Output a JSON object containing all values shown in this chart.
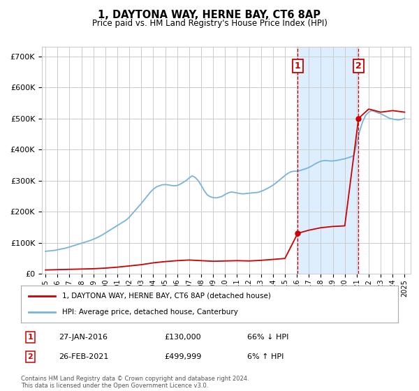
{
  "title": "1, DAYTONA WAY, HERNE BAY, CT6 8AP",
  "subtitle": "Price paid vs. HM Land Registry's House Price Index (HPI)",
  "legend_line1": "1, DAYTONA WAY, HERNE BAY, CT6 8AP (detached house)",
  "legend_line2": "HPI: Average price, detached house, Canterbury",
  "footer": "Contains HM Land Registry data © Crown copyright and database right 2024.\nThis data is licensed under the Open Government Licence v3.0.",
  "sale1_label": "1",
  "sale1_date": "27-JAN-2016",
  "sale1_price": "£130,000",
  "sale1_hpi": "66% ↓ HPI",
  "sale1_year": 2016.07,
  "sale1_value": 130000,
  "sale2_label": "2",
  "sale2_date": "26-FEB-2021",
  "sale2_price": "£499,999",
  "sale2_hpi": "6% ↑ HPI",
  "sale2_year": 2021.15,
  "sale2_value": 499999,
  "hpi_color": "#7ab3d9",
  "sale_color": "#cc0000",
  "shade_color": "#ddeeff",
  "grid_color": "#cccccc",
  "hpi_years": [
    1995.0,
    1995.25,
    1995.5,
    1995.75,
    1996.0,
    1996.25,
    1996.5,
    1996.75,
    1997.0,
    1997.25,
    1997.5,
    1997.75,
    1998.0,
    1998.25,
    1998.5,
    1998.75,
    1999.0,
    1999.25,
    1999.5,
    1999.75,
    2000.0,
    2000.25,
    2000.5,
    2000.75,
    2001.0,
    2001.25,
    2001.5,
    2001.75,
    2002.0,
    2002.25,
    2002.5,
    2002.75,
    2003.0,
    2003.25,
    2003.5,
    2003.75,
    2004.0,
    2004.25,
    2004.5,
    2004.75,
    2005.0,
    2005.25,
    2005.5,
    2005.75,
    2006.0,
    2006.25,
    2006.5,
    2006.75,
    2007.0,
    2007.25,
    2007.5,
    2007.75,
    2008.0,
    2008.25,
    2008.5,
    2008.75,
    2009.0,
    2009.25,
    2009.5,
    2009.75,
    2010.0,
    2010.25,
    2010.5,
    2010.75,
    2011.0,
    2011.25,
    2011.5,
    2011.75,
    2012.0,
    2012.25,
    2012.5,
    2012.75,
    2013.0,
    2013.25,
    2013.5,
    2013.75,
    2014.0,
    2014.25,
    2014.5,
    2014.75,
    2015.0,
    2015.25,
    2015.5,
    2015.75,
    2016.0,
    2016.25,
    2016.5,
    2016.75,
    2017.0,
    2017.25,
    2017.5,
    2017.75,
    2018.0,
    2018.25,
    2018.5,
    2018.75,
    2019.0,
    2019.25,
    2019.5,
    2019.75,
    2020.0,
    2020.25,
    2020.5,
    2020.75,
    2021.0,
    2021.25,
    2021.5,
    2021.75,
    2022.0,
    2022.25,
    2022.5,
    2022.75,
    2023.0,
    2023.25,
    2023.5,
    2023.75,
    2024.0,
    2024.25,
    2024.5,
    2024.75,
    2025.0
  ],
  "hpi_values": [
    72000,
    73000,
    74000,
    75000,
    77000,
    79000,
    81000,
    83000,
    86000,
    89000,
    92000,
    95000,
    98000,
    101000,
    104000,
    107000,
    111000,
    115000,
    120000,
    125000,
    131000,
    137000,
    143000,
    149000,
    155000,
    161000,
    167000,
    173000,
    182000,
    193000,
    204000,
    215000,
    226000,
    238000,
    250000,
    262000,
    272000,
    279000,
    283000,
    286000,
    287000,
    286000,
    284000,
    283000,
    284000,
    288000,
    294000,
    300000,
    308000,
    315000,
    310000,
    300000,
    285000,
    268000,
    254000,
    248000,
    245000,
    244000,
    246000,
    249000,
    255000,
    260000,
    263000,
    262000,
    260000,
    258000,
    257000,
    258000,
    259000,
    260000,
    261000,
    262000,
    265000,
    269000,
    274000,
    279000,
    285000,
    292000,
    300000,
    308000,
    316000,
    323000,
    328000,
    330000,
    330000,
    332000,
    335000,
    338000,
    342000,
    347000,
    353000,
    358000,
    362000,
    364000,
    364000,
    363000,
    363000,
    364000,
    366000,
    368000,
    370000,
    373000,
    376000,
    380000,
    420000,
    460000,
    490000,
    510000,
    520000,
    525000,
    522000,
    518000,
    515000,
    510000,
    505000,
    500000,
    498000,
    496000,
    495000,
    497000,
    500000
  ],
  "red_pre_sale1_years": [
    1995.0,
    1996.0,
    1997.0,
    1998.0,
    1999.0,
    2000.0,
    2001.0,
    2002.0,
    2003.0,
    2004.0,
    2005.0,
    2006.0,
    2007.0,
    2008.0,
    2009.0,
    2010.0,
    2011.0,
    2012.0,
    2013.0,
    2014.0,
    2015.0,
    2016.07
  ],
  "red_pre_sale1_values": [
    12000,
    13000,
    14000,
    15000,
    16000,
    18000,
    21000,
    25000,
    29000,
    35000,
    39000,
    42000,
    44000,
    42000,
    40000,
    41000,
    42000,
    41000,
    43000,
    46000,
    49000,
    130000
  ],
  "red_post_sale1_years": [
    2016.07,
    2017.0,
    2018.0,
    2019.0,
    2020.0,
    2021.15
  ],
  "red_post_sale1_values": [
    130000,
    140000,
    148000,
    152000,
    154000,
    499999
  ],
  "red_post_sale2_years": [
    2021.15,
    2022.0,
    2023.0,
    2024.0,
    2025.0
  ],
  "red_post_sale2_values": [
    499999,
    530000,
    520000,
    525000,
    520000
  ],
  "ylim": [
    0,
    730000
  ],
  "yticks": [
    0,
    100000,
    200000,
    300000,
    400000,
    500000,
    600000,
    700000
  ],
  "ytick_labels": [
    "£0",
    "£100K",
    "£200K",
    "£300K",
    "£400K",
    "£500K",
    "£600K",
    "£700K"
  ],
  "xtick_years": [
    1995,
    1996,
    1997,
    1998,
    1999,
    2000,
    2001,
    2002,
    2003,
    2004,
    2005,
    2006,
    2007,
    2008,
    2009,
    2010,
    2011,
    2012,
    2013,
    2014,
    2015,
    2016,
    2017,
    2018,
    2019,
    2020,
    2021,
    2022,
    2023,
    2024,
    2025
  ],
  "xlim_left": 1994.7,
  "xlim_right": 2025.5
}
